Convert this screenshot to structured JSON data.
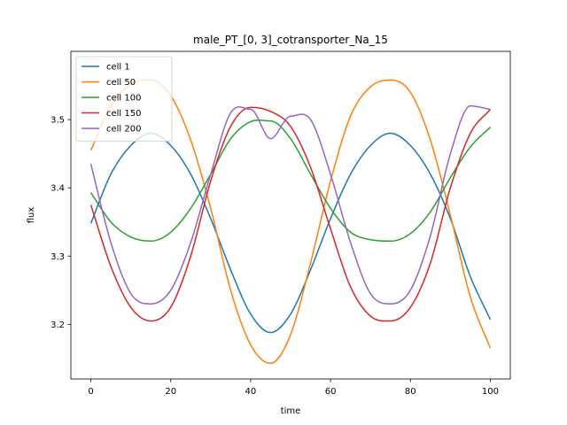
{
  "chart_data": {
    "type": "line",
    "title": "male_PT_[0, 3]_cotransporter_Na_15",
    "xlabel": "time",
    "ylabel": "flux",
    "xlim": [
      -5,
      105
    ],
    "ylim": [
      3.12,
      3.6
    ],
    "xticks": [
      0,
      20,
      40,
      60,
      80,
      100
    ],
    "yticks": [
      3.2,
      3.3,
      3.4,
      3.5
    ],
    "grid": false,
    "legend_position": "top-left",
    "series": [
      {
        "name": "cell 1",
        "color": "#1f77b4",
        "x": [
          0,
          5,
          10,
          15,
          20,
          25,
          30,
          35,
          40,
          45,
          50,
          55,
          60,
          65,
          70,
          75,
          80,
          85,
          90,
          95,
          100
        ],
        "y": [
          3.348,
          3.42,
          3.462,
          3.48,
          3.462,
          3.42,
          3.355,
          3.28,
          3.215,
          3.188,
          3.215,
          3.28,
          3.355,
          3.42,
          3.462,
          3.48,
          3.462,
          3.42,
          3.355,
          3.27,
          3.207
        ]
      },
      {
        "name": "cell 50",
        "color": "#ff7f0e",
        "x": [
          0,
          5,
          10,
          15,
          20,
          25,
          30,
          35,
          40,
          45,
          50,
          55,
          60,
          65,
          70,
          75,
          80,
          85,
          90,
          95,
          100
        ],
        "y": [
          3.455,
          3.52,
          3.552,
          3.558,
          3.535,
          3.47,
          3.37,
          3.25,
          3.17,
          3.143,
          3.185,
          3.29,
          3.41,
          3.505,
          3.548,
          3.558,
          3.54,
          3.47,
          3.36,
          3.24,
          3.165
        ]
      },
      {
        "name": "cell 100",
        "color": "#2ca02c",
        "x": [
          0,
          5,
          10,
          15,
          20,
          25,
          30,
          35,
          40,
          45,
          50,
          55,
          60,
          65,
          70,
          75,
          80,
          85,
          90,
          95,
          100
        ],
        "y": [
          3.393,
          3.35,
          3.328,
          3.322,
          3.335,
          3.37,
          3.42,
          3.472,
          3.497,
          3.498,
          3.472,
          3.42,
          3.37,
          3.335,
          3.324,
          3.322,
          3.333,
          3.365,
          3.415,
          3.46,
          3.489
        ]
      },
      {
        "name": "cell 150",
        "color": "#d62728",
        "x": [
          0,
          5,
          10,
          15,
          20,
          25,
          30,
          35,
          40,
          45,
          50,
          55,
          60,
          65,
          70,
          75,
          80,
          85,
          90,
          95,
          100
        ],
        "y": [
          3.375,
          3.285,
          3.225,
          3.205,
          3.225,
          3.3,
          3.41,
          3.49,
          3.518,
          3.512,
          3.49,
          3.43,
          3.34,
          3.255,
          3.212,
          3.205,
          3.225,
          3.29,
          3.4,
          3.48,
          3.515
        ]
      },
      {
        "name": "cell 200",
        "color": "#9467bd",
        "x": [
          0,
          5,
          10,
          15,
          20,
          25,
          30,
          35,
          40,
          45,
          50,
          55,
          60,
          65,
          70,
          75,
          80,
          85,
          90,
          95,
          100
        ],
        "y": [
          3.435,
          3.32,
          3.245,
          3.23,
          3.25,
          3.32,
          3.42,
          3.51,
          3.515,
          3.472,
          3.505,
          3.5,
          3.42,
          3.32,
          3.245,
          3.23,
          3.25,
          3.33,
          3.45,
          3.52,
          3.515
        ]
      }
    ]
  }
}
